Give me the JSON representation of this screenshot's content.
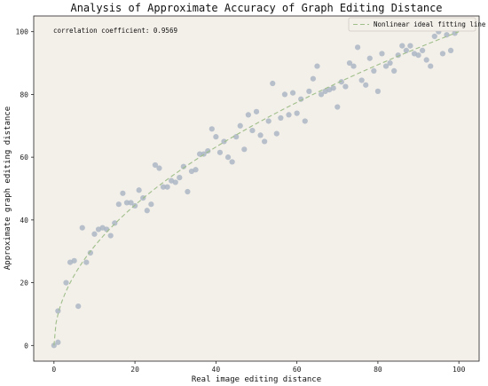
{
  "chart_data": {
    "type": "scatter",
    "title": "Analysis of Approximate Accuracy of Graph Editing Distance",
    "xlabel": "Real image editing distance",
    "ylabel": "Approximate graph editing distance",
    "xlim": [
      -5,
      105
    ],
    "ylim": [
      -5,
      105
    ],
    "x_ticks": [
      0,
      20,
      40,
      60,
      80,
      100
    ],
    "y_ticks": [
      0,
      20,
      40,
      60,
      80,
      100
    ],
    "grid": false,
    "annotation": "correlation coefficient: 0.9569",
    "legend": {
      "placement": "top-right",
      "entries": [
        "Nonlinear ideal fitting line"
      ]
    },
    "colors": {
      "background": "#f3efe9",
      "points": "#aab6c4",
      "fit_line": "#9fbf8a"
    },
    "fit_line": {
      "name": "Nonlinear ideal fitting line",
      "form": "y = 10*sqrt(x)",
      "x_range": [
        0,
        100
      ]
    },
    "points": [
      [
        0,
        0
      ],
      [
        1,
        1
      ],
      [
        1,
        11
      ],
      [
        3,
        20
      ],
      [
        4,
        26.5
      ],
      [
        5,
        27
      ],
      [
        6,
        12.5
      ],
      [
        7,
        37.5
      ],
      [
        8,
        26.5
      ],
      [
        9,
        29.5
      ],
      [
        10,
        35.5
      ],
      [
        11,
        37
      ],
      [
        12,
        37.5
      ],
      [
        13,
        37
      ],
      [
        14,
        35
      ],
      [
        15,
        39
      ],
      [
        16,
        45
      ],
      [
        17,
        48.5
      ],
      [
        18,
        45.5
      ],
      [
        19,
        45.5
      ],
      [
        20,
        44.5
      ],
      [
        21,
        49.5
      ],
      [
        22,
        47
      ],
      [
        23,
        43
      ],
      [
        24,
        45
      ],
      [
        25,
        57.5
      ],
      [
        26,
        56.5
      ],
      [
        27,
        50.5
      ],
      [
        28,
        50.5
      ],
      [
        29,
        52.5
      ],
      [
        30,
        52
      ],
      [
        31,
        53.5
      ],
      [
        32,
        57
      ],
      [
        33,
        49
      ],
      [
        34,
        55.5
      ],
      [
        35,
        56
      ],
      [
        36,
        61
      ],
      [
        37,
        61
      ],
      [
        38,
        62
      ],
      [
        39,
        69
      ],
      [
        40,
        66.5
      ],
      [
        41,
        61.5
      ],
      [
        42,
        65
      ],
      [
        43,
        60
      ],
      [
        44,
        58.5
      ],
      [
        45,
        66.5
      ],
      [
        46,
        70
      ],
      [
        47,
        62.5
      ],
      [
        48,
        73.5
      ],
      [
        49,
        68.5
      ],
      [
        50,
        74.5
      ],
      [
        51,
        67
      ],
      [
        52,
        65
      ],
      [
        53,
        71.5
      ],
      [
        54,
        83.5
      ],
      [
        55,
        67.5
      ],
      [
        56,
        72.5
      ],
      [
        57,
        80
      ],
      [
        58,
        73.5
      ],
      [
        59,
        80.5
      ],
      [
        60,
        74
      ],
      [
        61,
        78.5
      ],
      [
        62,
        71.5
      ],
      [
        63,
        81
      ],
      [
        64,
        85
      ],
      [
        65,
        89
      ],
      [
        66,
        80
      ],
      [
        67,
        81
      ],
      [
        68,
        81.5
      ],
      [
        69,
        82
      ],
      [
        70,
        76
      ],
      [
        71,
        84
      ],
      [
        72,
        82.5
      ],
      [
        73,
        90
      ],
      [
        74,
        89
      ],
      [
        75,
        95
      ],
      [
        76,
        84.5
      ],
      [
        77,
        83
      ],
      [
        78,
        91.5
      ],
      [
        79,
        87.5
      ],
      [
        80,
        81
      ],
      [
        81,
        93
      ],
      [
        82,
        89
      ],
      [
        83,
        90
      ],
      [
        84,
        87.5
      ],
      [
        85,
        92.5
      ],
      [
        86,
        95.5
      ],
      [
        87,
        94
      ],
      [
        88,
        95.5
      ],
      [
        89,
        93
      ],
      [
        90,
        92.5
      ],
      [
        91,
        94
      ],
      [
        92,
        91
      ],
      [
        93,
        89
      ],
      [
        94,
        98.5
      ],
      [
        95,
        100
      ],
      [
        96,
        93
      ],
      [
        97,
        99
      ],
      [
        98,
        94
      ],
      [
        99,
        99.5
      ]
    ]
  }
}
